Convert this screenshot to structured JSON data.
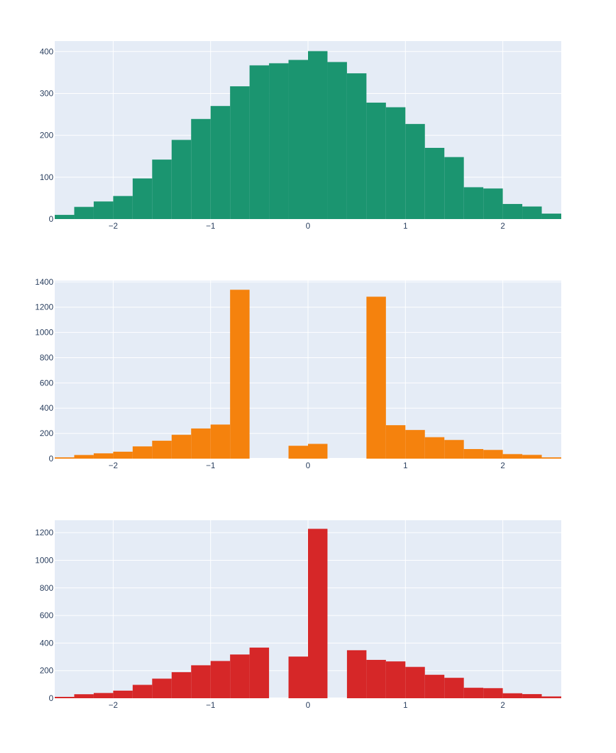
{
  "chart_data": [
    {
      "type": "bar",
      "histogram": true,
      "color": "#1B9570",
      "bin_width": 0.2,
      "x_bins_start": [
        -2.6,
        -2.4,
        -2.2,
        -2.0,
        -1.8,
        -1.6,
        -1.4,
        -1.2,
        -1.0,
        -0.8,
        -0.6,
        -0.4,
        -0.2,
        0.0,
        0.2,
        0.4,
        0.6,
        0.8,
        1.0,
        1.2,
        1.4,
        1.6,
        1.8,
        2.0,
        2.2,
        2.4
      ],
      "values": [
        10,
        29,
        42,
        55,
        97,
        142,
        189,
        239,
        270,
        317,
        367,
        372,
        380,
        401,
        375,
        348,
        278,
        267,
        227,
        170,
        148,
        76,
        73,
        36,
        30,
        13
      ],
      "xlim": [
        -2.6,
        2.6
      ],
      "ylim": [
        0,
        425
      ],
      "xticks": [
        -2,
        -1,
        0,
        1,
        2
      ],
      "xtick_labels": [
        "−2",
        "−1",
        "0",
        "1",
        "2"
      ],
      "yticks": [
        0,
        100,
        200,
        300,
        400
      ],
      "ytick_labels": [
        "0",
        "100",
        "200",
        "300",
        "400"
      ],
      "grid": true
    },
    {
      "type": "bar",
      "histogram": true,
      "color": "#F5820D",
      "bin_width": 0.2,
      "x_bins_start": [
        -2.6,
        -2.4,
        -2.2,
        -2.0,
        -1.8,
        -1.6,
        -1.4,
        -1.2,
        -1.0,
        -0.8,
        -0.6,
        -0.4,
        -0.2,
        0.0,
        0.2,
        0.4,
        0.6,
        0.8,
        1.0,
        1.2,
        1.4,
        1.6,
        1.8,
        2.0,
        2.2,
        2.4
      ],
      "values": [
        10,
        29,
        42,
        55,
        97,
        142,
        189,
        239,
        270,
        1338,
        0,
        0,
        102,
        117,
        0,
        0,
        1283,
        265,
        227,
        170,
        148,
        76,
        69,
        36,
        30,
        10
      ],
      "xlim": [
        -2.6,
        2.6
      ],
      "ylim": [
        0,
        1410
      ],
      "xticks": [
        -2,
        -1,
        0,
        1,
        2
      ],
      "xtick_labels": [
        "−2",
        "−1",
        "0",
        "1",
        "2"
      ],
      "yticks": [
        0,
        200,
        400,
        600,
        800,
        1000,
        1200,
        1400
      ],
      "ytick_labels": [
        "0",
        "200",
        "400",
        "600",
        "800",
        "1000",
        "1200",
        "1400"
      ],
      "grid": true
    },
    {
      "type": "bar",
      "histogram": true,
      "color": "#D62728",
      "bin_width": 0.2,
      "x_bins_start": [
        -2.6,
        -2.4,
        -2.2,
        -2.0,
        -1.8,
        -1.6,
        -1.4,
        -1.2,
        -1.0,
        -0.8,
        -0.6,
        -0.4,
        -0.2,
        0.0,
        0.2,
        0.4,
        0.6,
        0.8,
        1.0,
        1.2,
        1.4,
        1.6,
        1.8,
        2.0,
        2.2,
        2.4
      ],
      "values": [
        10,
        29,
        38,
        55,
        97,
        142,
        189,
        239,
        270,
        317,
        367,
        0,
        302,
        1228,
        0,
        348,
        278,
        267,
        227,
        170,
        148,
        76,
        73,
        36,
        30,
        13
      ],
      "xlim": [
        -2.6,
        2.6
      ],
      "ylim": [
        0,
        1290
      ],
      "xticks": [
        -2,
        -1,
        0,
        1,
        2
      ],
      "xtick_labels": [
        "−2",
        "−1",
        "0",
        "1",
        "2"
      ],
      "yticks": [
        0,
        200,
        400,
        600,
        800,
        1000,
        1200
      ],
      "ytick_labels": [
        "0",
        "200",
        "400",
        "600",
        "800",
        "1000",
        "1200"
      ],
      "grid": true
    }
  ]
}
